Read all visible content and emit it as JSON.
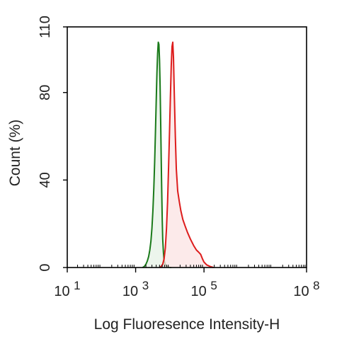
{
  "chart_data": {
    "type": "area",
    "title": "",
    "xlabel": "Log Fluoresence Intensity-H",
    "ylabel": "Count  (%)",
    "x_scale": "log",
    "xlim": [
      10,
      100000000
    ],
    "ylim": [
      0,
      110
    ],
    "x_ticks": [
      {
        "base": "10",
        "exp": "1",
        "value": 10
      },
      {
        "base": "10",
        "exp": "3",
        "value": 1000
      },
      {
        "base": "10",
        "exp": "5",
        "value": 100000
      },
      {
        "base": "10",
        "exp": "8",
        "value": 100000000
      }
    ],
    "y_ticks": [
      0,
      40,
      80,
      110
    ],
    "grid": false,
    "legend": "none",
    "series": [
      {
        "color": "#1a7a1a",
        "fill": "#e6f2e6",
        "x": [
          1600,
          1800,
          2000,
          2200,
          2400,
          2600,
          2800,
          3000,
          3200,
          3400,
          3600,
          3800,
          4000,
          4200,
          4400,
          4600,
          4800,
          5000,
          5200,
          5400,
          5600,
          5800,
          6000,
          6200,
          6500,
          6800,
          7200,
          7800,
          8500,
          9500,
          11000
        ],
        "values": [
          0,
          0.5,
          1.5,
          3,
          5,
          8,
          12,
          18,
          26,
          36,
          48,
          62,
          76,
          89,
          98,
          103,
          102,
          95,
          83,
          67,
          50,
          35,
          22,
          13,
          7,
          3.5,
          1.8,
          0.8,
          0.3,
          0.1,
          0
        ]
      },
      {
        "color": "#dd1c1c",
        "fill": "#fbe3e3",
        "x": [
          5000,
          5600,
          6200,
          6800,
          7400,
          8000,
          8600,
          9200,
          9800,
          10400,
          11000,
          11600,
          12200,
          12800,
          13500,
          14500,
          15500,
          17000,
          19000,
          21000,
          24000,
          28000,
          33000,
          40000,
          50000,
          60000,
          70000,
          80000,
          90000,
          100000,
          120000,
          150000,
          190000
        ],
        "values": [
          0,
          0.5,
          1.5,
          4,
          9,
          18,
          30,
          46,
          62,
          78,
          92,
          101,
          103,
          96,
          80,
          60,
          45,
          35,
          30,
          26,
          22,
          19,
          16,
          13,
          10,
          8,
          7,
          6,
          4,
          2.5,
          1.2,
          0.5,
          0
        ]
      }
    ]
  }
}
